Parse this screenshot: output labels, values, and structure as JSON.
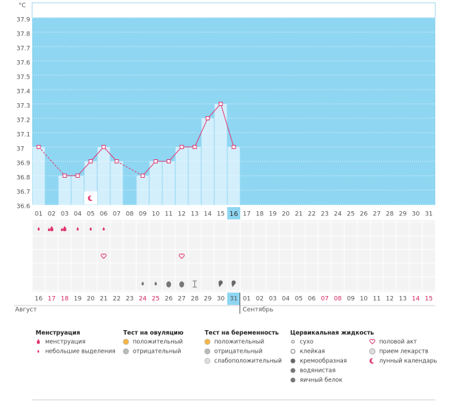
{
  "chart_data": {
    "type": "line",
    "y_label": "°C",
    "ylim": [
      36.6,
      37.9
    ],
    "yticks": [
      36.6,
      36.7,
      36.8,
      36.9,
      37,
      37.1,
      37.2,
      37.3,
      37.4,
      37.5,
      37.6,
      37.7,
      37.8,
      37.9
    ],
    "grid": true,
    "color": "#e0336f",
    "categories": [
      "01",
      "02",
      "03",
      "04",
      "05",
      "06",
      "07",
      "08",
      "09",
      "10",
      "11",
      "12",
      "13",
      "14",
      "15",
      "16",
      "17",
      "18",
      "19",
      "20",
      "21",
      "22",
      "23",
      "24",
      "25",
      "26",
      "27",
      "28",
      "29",
      "30",
      "31"
    ],
    "current_index": 15,
    "values": [
      37,
      null,
      36.8,
      36.8,
      36.9,
      37,
      36.9,
      null,
      36.8,
      36.9,
      36.9,
      37,
      37,
      37.2,
      37.3,
      37,
      null,
      null,
      null,
      null,
      null,
      null,
      null,
      null,
      null,
      null,
      null,
      null,
      null,
      null,
      null
    ],
    "dates": [
      "16",
      "17",
      "18",
      "19",
      "20",
      "21",
      "22",
      "23",
      "24",
      "25",
      "26",
      "27",
      "28",
      "29",
      "30",
      "31",
      "01",
      "02",
      "03",
      "04",
      "05",
      "06",
      "07",
      "08",
      "09",
      "10",
      "11",
      "12",
      "13",
      "14",
      "15"
    ],
    "weekend": [
      false,
      true,
      true,
      false,
      false,
      false,
      false,
      false,
      true,
      true,
      false,
      false,
      false,
      false,
      false,
      false,
      false,
      false,
      false,
      false,
      false,
      false,
      true,
      true,
      false,
      false,
      false,
      false,
      false,
      true,
      true
    ],
    "months": [
      "Август",
      "Сентябрь"
    ],
    "month_break_index": 16,
    "legend": [
      {
        "title": "Менструация",
        "items": [
          "менструация",
          "небольшие выделения"
        ]
      },
      {
        "title": "Тест на овуляцию",
        "items": [
          "положительный",
          "отрицательный"
        ]
      },
      {
        "title": "Тест на беременность",
        "items": [
          "положительный",
          "отрицательный",
          "слабоположительный"
        ]
      },
      {
        "title": "Цервикальная жидкость",
        "items": [
          "сухо",
          "клейкая",
          "кремообразная",
          "водянистая",
          "яичный белок"
        ]
      },
      {
        "items": [
          "половой акт",
          "прием лекарств",
          "лунный календарь"
        ]
      }
    ]
  }
}
